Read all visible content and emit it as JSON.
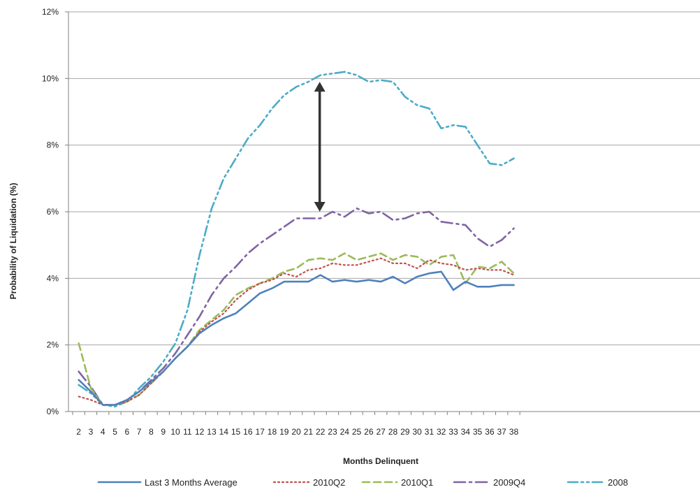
{
  "chart_data": {
    "type": "line",
    "title": "",
    "xlabel": "Months Delinquent",
    "ylabel": "Probability of Liquidation (%)",
    "ylim": [
      0,
      12
    ],
    "y_ticks": [
      "0%",
      "2%",
      "4%",
      "6%",
      "8%",
      "10%",
      "12%"
    ],
    "y_tick_values": [
      0,
      2,
      4,
      6,
      8,
      10,
      12
    ],
    "categories": [
      "2",
      "3",
      "4",
      "5",
      "6",
      "7",
      "8",
      "9",
      "10",
      "11",
      "12",
      "13",
      "14",
      "15",
      "16",
      "17",
      "18",
      "19",
      "20",
      "21",
      "22",
      "23",
      "24",
      "25",
      "26",
      "27",
      "28",
      "29",
      "30",
      "31",
      "32",
      "33",
      "34",
      "35",
      "36",
      "37",
      "38"
    ],
    "grid": "horizontal",
    "legend_position": "bottom",
    "annotation": "double-headed arrow at month 22 between the 2008 and 2009Q4 curves",
    "annotation_x": "22",
    "annotation_range": [
      6.0,
      9.9
    ],
    "series": [
      {
        "name": "Last 3 Months Average",
        "color": "#4f81bd",
        "dash": "solid",
        "values": [
          0.95,
          0.6,
          0.2,
          0.2,
          0.35,
          0.6,
          0.9,
          1.2,
          1.6,
          1.95,
          2.35,
          2.6,
          2.8,
          2.95,
          3.25,
          3.55,
          3.7,
          3.9,
          3.9,
          3.9,
          4.1,
          3.9,
          3.95,
          3.9,
          3.95,
          3.9,
          4.05,
          3.85,
          4.05,
          4.15,
          4.2,
          3.65,
          3.9,
          3.75,
          3.75,
          3.8,
          3.8
        ]
      },
      {
        "name": "2010Q2",
        "color": "#c0504d",
        "dash": "dotted",
        "values": [
          0.45,
          0.35,
          0.2,
          0.2,
          0.3,
          0.5,
          0.85,
          1.2,
          1.6,
          1.95,
          2.4,
          2.7,
          2.95,
          3.35,
          3.65,
          3.85,
          3.95,
          4.15,
          4.05,
          4.25,
          4.3,
          4.45,
          4.4,
          4.4,
          4.5,
          4.6,
          4.45,
          4.45,
          4.3,
          4.55,
          4.45,
          4.4,
          4.25,
          4.3,
          4.25,
          4.25,
          4.1
        ]
      },
      {
        "name": "2010Q1",
        "color": "#9bbb59",
        "dash": "dashed",
        "values": [
          2.05,
          0.7,
          0.2,
          0.2,
          0.3,
          0.5,
          0.85,
          1.2,
          1.6,
          1.95,
          2.45,
          2.75,
          3.05,
          3.5,
          3.7,
          3.85,
          4.0,
          4.2,
          4.3,
          4.55,
          4.6,
          4.55,
          4.75,
          4.55,
          4.65,
          4.75,
          4.55,
          4.7,
          4.65,
          4.4,
          4.65,
          4.7,
          3.85,
          4.35,
          4.3,
          4.5,
          4.15
        ]
      },
      {
        "name": "2009Q4",
        "color": "#8064a2",
        "dash": "dashdot",
        "values": [
          1.2,
          0.75,
          0.2,
          0.2,
          0.35,
          0.6,
          0.95,
          1.3,
          1.75,
          2.3,
          2.85,
          3.5,
          4.0,
          4.35,
          4.75,
          5.05,
          5.3,
          5.55,
          5.8,
          5.8,
          5.8,
          6.0,
          5.85,
          6.1,
          5.95,
          6.0,
          5.75,
          5.8,
          5.95,
          6.0,
          5.7,
          5.65,
          5.6,
          5.2,
          4.95,
          5.15,
          5.5
        ]
      },
      {
        "name": "2008",
        "color": "#4bacc6",
        "dash": "dashdotdot",
        "values": [
          0.8,
          0.55,
          0.2,
          0.15,
          0.3,
          0.7,
          1.05,
          1.5,
          2.05,
          3.05,
          4.7,
          6.1,
          7.0,
          7.6,
          8.2,
          8.6,
          9.1,
          9.5,
          9.75,
          9.9,
          10.1,
          10.15,
          10.2,
          10.1,
          9.9,
          9.95,
          9.9,
          9.45,
          9.2,
          9.1,
          8.5,
          8.6,
          8.55,
          8.0,
          7.45,
          7.4,
          7.6
        ]
      }
    ]
  }
}
